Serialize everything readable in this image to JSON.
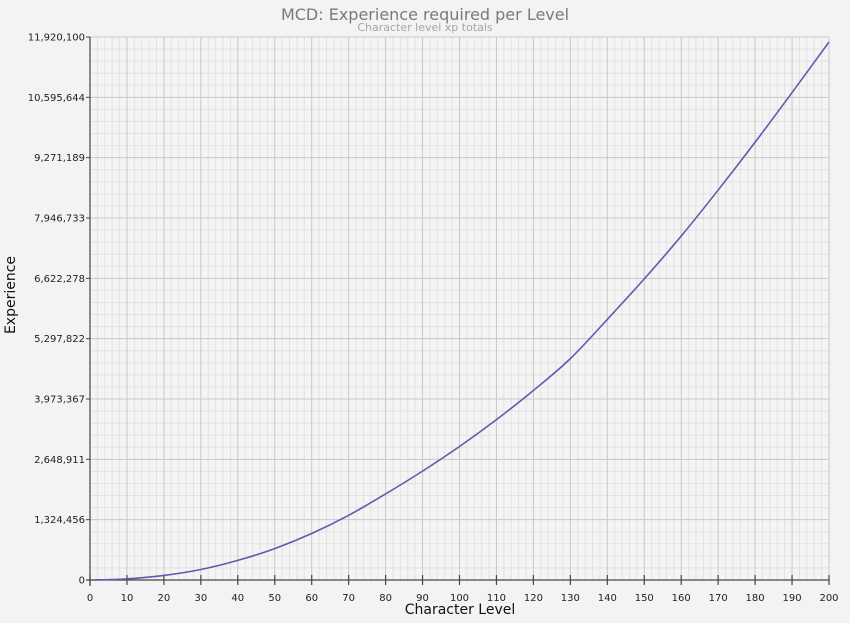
{
  "header": {
    "title": "MCD: Experience required per Level",
    "subtitle": "Character level xp totals"
  },
  "axes": {
    "x_title": "Character Level",
    "y_title": "Experience",
    "x_ticks": [
      "0",
      "10",
      "20",
      "30",
      "40",
      "50",
      "60",
      "70",
      "80",
      "90",
      "100",
      "110",
      "120",
      "130",
      "140",
      "150",
      "160",
      "170",
      "180",
      "190",
      "200"
    ],
    "y_ticks": [
      "0",
      "1,324,456",
      "2,648,911",
      "3,973,367",
      "5,297,822",
      "6,622,278",
      "7,946,733",
      "9,271,189",
      "10,595,644",
      "11,920,100"
    ]
  },
  "colors": {
    "line": "#6a55b0",
    "background": "#f3f3f3",
    "plot_background": "#f4f4f4",
    "major_grid": "#c8c8c8",
    "minor_grid": "#e2e2e2",
    "axis": "#444444"
  },
  "chart_data": {
    "type": "line",
    "title": "MCD: Experience required per Level",
    "subtitle": "Character level xp totals",
    "xlabel": "Character Level",
    "ylabel": "Experience",
    "xlim": [
      0,
      200
    ],
    "ylim": [
      0,
      11920100
    ],
    "x_ticks": [
      0,
      10,
      20,
      30,
      40,
      50,
      60,
      70,
      80,
      90,
      100,
      110,
      120,
      130,
      140,
      150,
      160,
      170,
      180,
      190,
      200
    ],
    "y_ticks": [
      0,
      1324456,
      2648911,
      3973367,
      5297822,
      6622278,
      7946733,
      9271189,
      10595644,
      11920100
    ],
    "grid": {
      "major": true,
      "minor": true,
      "minor_subdivisions": 5
    },
    "legend": null,
    "series": [
      {
        "name": "Experience",
        "x": [
          1,
          10,
          20,
          30,
          40,
          50,
          60,
          70,
          80,
          90,
          100,
          110,
          120,
          130,
          140,
          150,
          160,
          170,
          180,
          190,
          200
        ],
        "values": [
          0,
          25000,
          100000,
          230000,
          430000,
          690000,
          1020000,
          1420000,
          1890000,
          2390000,
          2930000,
          3520000,
          4160000,
          4860000,
          5720000,
          6610000,
          7550000,
          8560000,
          9610000,
          10700000,
          11810000
        ]
      }
    ]
  }
}
